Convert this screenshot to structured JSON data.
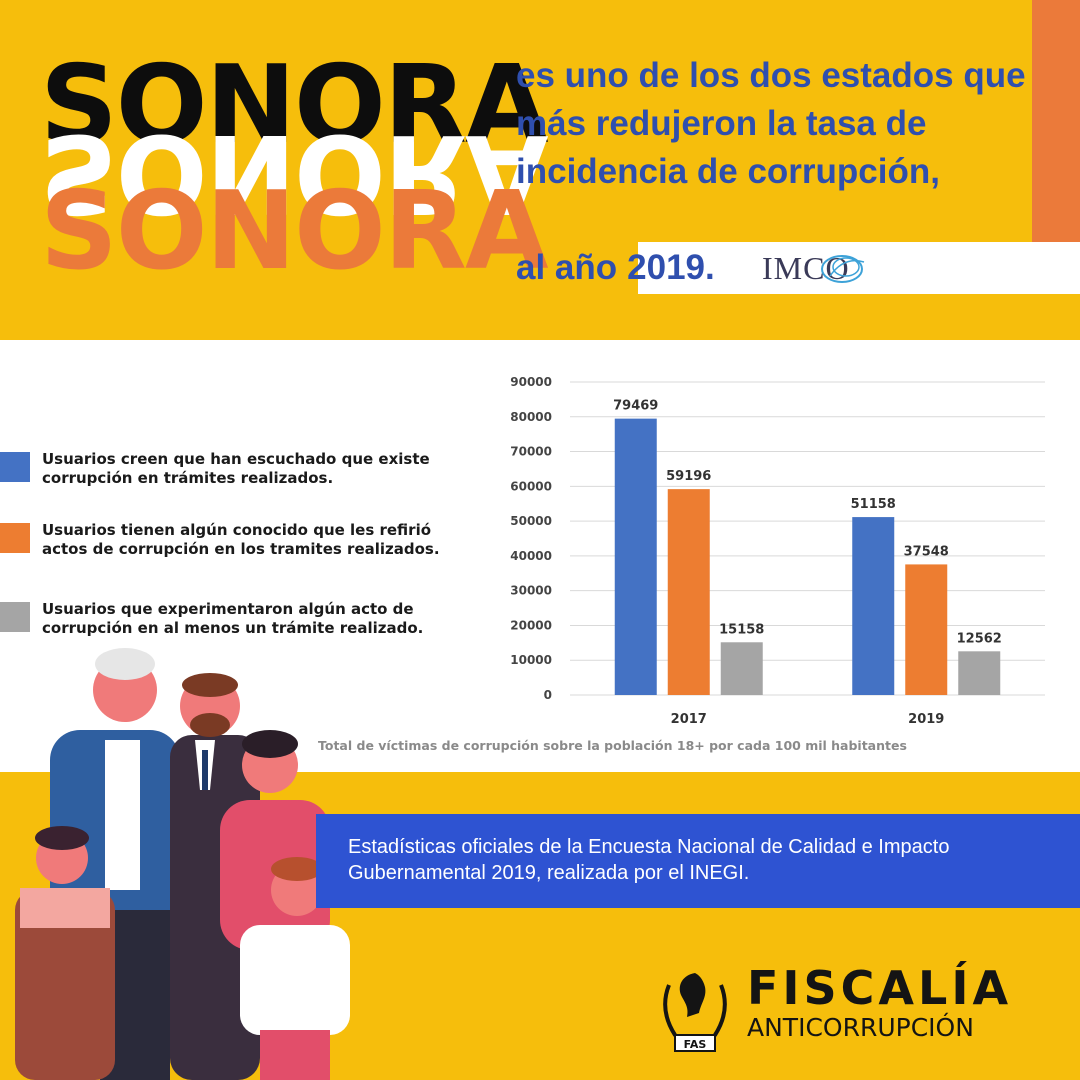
{
  "header": {
    "title_word": "SONORA",
    "headline": "es uno de los dos estados que más redujeron la tasa de incidencia de corrupción,",
    "headline_last": "al año",
    "headline_year": "2019.",
    "source_logo": "IMCO"
  },
  "legend": {
    "items": [
      {
        "label": "Usuarios creen que han escuchado que existe corrupción en trámites realizados.",
        "color": "#4472C4"
      },
      {
        "label": "Usuarios tienen algún conocido que les refirió actos de corrupción en los tramites realizados.",
        "color": "#ED7D31"
      },
      {
        "label": "Usuarios que experimentaron algún acto de corrupción en al menos un trámite realizado.",
        "color": "#A5A5A5"
      }
    ]
  },
  "chart_data": {
    "type": "bar",
    "categories": [
      "2017",
      "2019"
    ],
    "series": [
      {
        "values": [
          79469,
          51158
        ],
        "color": "#4472C4"
      },
      {
        "values": [
          59196,
          37548
        ],
        "color": "#ED7D31"
      },
      {
        "values": [
          15158,
          12562
        ],
        "color": "#A5A5A5"
      }
    ],
    "ylim": [
      0,
      90000
    ],
    "yticks": [
      0,
      10000,
      20000,
      30000,
      40000,
      50000,
      60000,
      70000,
      80000,
      90000
    ],
    "grid": true,
    "data_labels": true
  },
  "footnote": "Total de víctimas de corrupción sobre la población 18+ por cada 100 mil habitantes",
  "source_banner": "Estadísticas oficiales de la Encuesta Nacional de Calidad e Impacto Gubernamental 2019, realizada por el INEGI.",
  "brand": {
    "name": "FISCALÍA",
    "subtitle": "ANTICORRUPCIÓN",
    "badge": "FAS"
  },
  "colors": {
    "background": "#F6BE0C",
    "accent_orange": "#EB7A3A",
    "blue_text": "#2F4FAE",
    "banner_blue": "#2E53D2"
  }
}
